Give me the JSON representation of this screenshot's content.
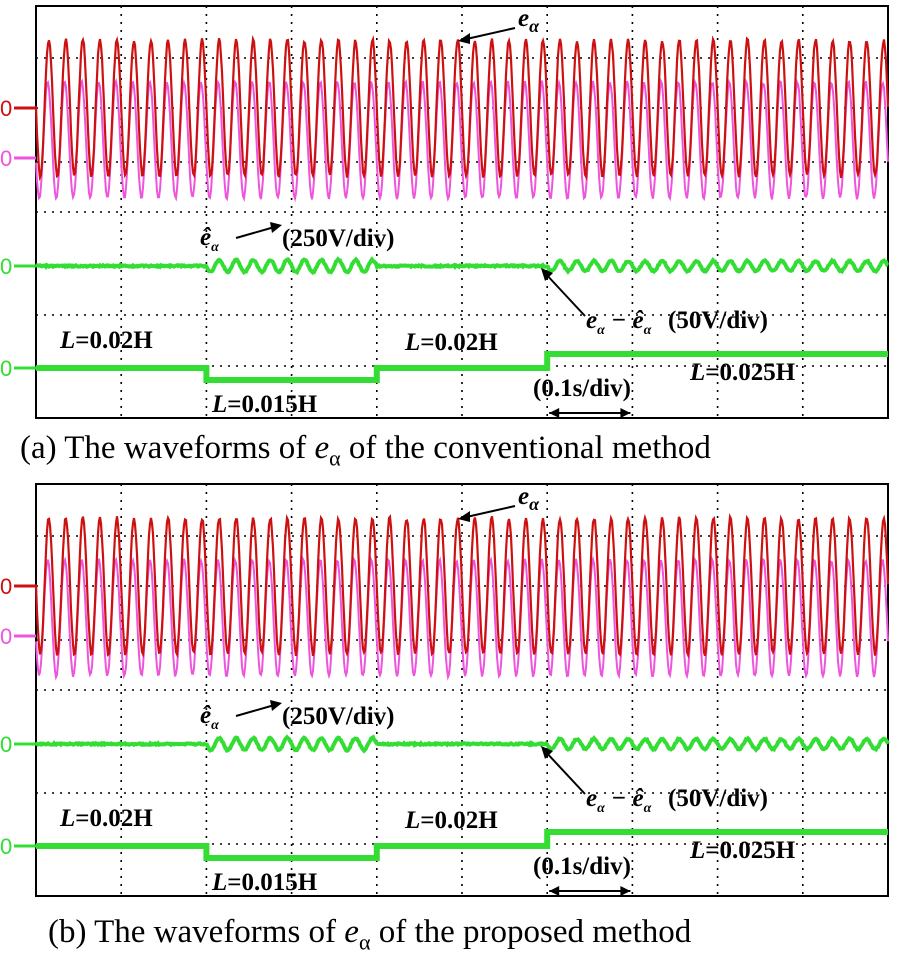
{
  "chart_data": [
    {
      "type": "line",
      "caption_prefix": "(a) The waveforms of ",
      "caption_symbol": "e",
      "caption_sub": "α",
      "caption_suffix": " of the conventional method",
      "annotations": {
        "e_alpha": "e",
        "e_alpha_sub": "α",
        "e_hat": "ê",
        "e_hat_sub": "α",
        "scale_top": "(250V/div)",
        "err_expr": "e",
        "err_sub1": "α",
        "err_minus": "−",
        "err_hat": "ê",
        "err_sub2": "α",
        "scale_err": "(50V/div)",
        "time_scale": "(0.1s/div)"
      },
      "inductance_labels": [
        {
          "prefix": "L",
          "value": "=0.02H"
        },
        {
          "prefix": "L",
          "value": "=0.015H"
        },
        {
          "prefix": "L",
          "value": "=0.02H"
        },
        {
          "prefix": "L",
          "value": "=0.025H"
        }
      ],
      "channel_markers": [
        "0",
        "0",
        "0",
        "0"
      ],
      "segments_divisions": [
        0,
        2,
        4,
        6,
        10
      ],
      "series": [
        {
          "name": "e_alpha",
          "color": "#cc1111"
        },
        {
          "name": "e_hat_alpha",
          "color": "#ee55dd"
        },
        {
          "name": "e_alpha - e_hat_alpha",
          "color": "#33dd33"
        },
        {
          "name": "L",
          "color": "#33dd33"
        }
      ],
      "grid": true
    },
    {
      "type": "line",
      "caption_prefix": "(b) The waveforms of ",
      "caption_symbol": "e",
      "caption_sub": "α",
      "caption_suffix": " of the proposed method",
      "annotations": {
        "e_alpha": "e",
        "e_alpha_sub": "α",
        "e_hat": "ê",
        "e_hat_sub": "α",
        "scale_top": "(250V/div)",
        "err_expr": "e",
        "err_sub1": "α",
        "err_minus": "−",
        "err_hat": "ê",
        "err_sub2": "α",
        "scale_err": "(50V/div)",
        "time_scale": "(0.1s/div)"
      },
      "inductance_labels": [
        {
          "prefix": "L",
          "value": "=0.02H"
        },
        {
          "prefix": "L",
          "value": "=0.015H"
        },
        {
          "prefix": "L",
          "value": "=0.02H"
        },
        {
          "prefix": "L",
          "value": "=0.025H"
        }
      ],
      "channel_markers": [
        "0",
        "0",
        "0",
        "0"
      ],
      "segments_divisions": [
        0,
        2,
        4,
        6,
        10
      ],
      "series": [
        {
          "name": "e_alpha",
          "color": "#cc1111"
        },
        {
          "name": "e_hat_alpha",
          "color": "#ee55dd"
        },
        {
          "name": "e_alpha - e_hat_alpha",
          "color": "#33dd33"
        },
        {
          "name": "L",
          "color": "#33dd33"
        }
      ],
      "grid": true
    }
  ]
}
